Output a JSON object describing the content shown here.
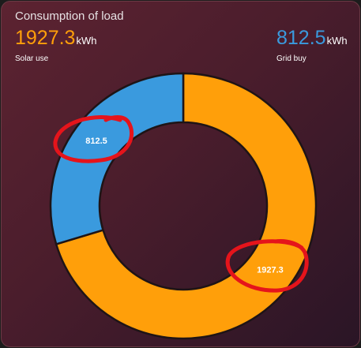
{
  "chart_data": {
    "type": "pie",
    "title": "Consumption of load",
    "unit": "kWh",
    "categories": [
      "Solar use",
      "Grid buy"
    ],
    "values": [
      1927.3,
      812.5
    ],
    "colors": [
      "#ff9f0a",
      "#3a9ade"
    ]
  }
}
